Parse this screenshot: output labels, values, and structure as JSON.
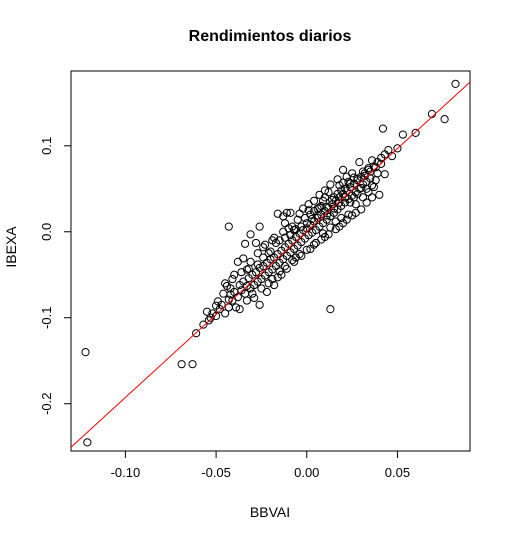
{
  "chart_data": {
    "type": "scatter",
    "title": "Rendimientos diarios",
    "xlabel": "BBVAI",
    "ylabel": "IBEXA",
    "xlim": [
      -0.13,
      0.09
    ],
    "ylim": [
      -0.255,
      0.187
    ],
    "xticks": [
      -0.1,
      -0.05,
      0.0,
      0.05
    ],
    "xtick_labels": [
      "-0.10",
      "-0.05",
      "0.00",
      "0.05"
    ],
    "yticks": [
      -0.2,
      -0.1,
      0.0,
      0.1
    ],
    "ytick_labels": [
      "-0.2",
      "-0.1",
      "0.0",
      "0.1"
    ],
    "grid": false,
    "legend": "none",
    "point_color": "#000000",
    "line_color": "#ff0000",
    "regression_line": {
      "intercept": 0.0003,
      "slope": 1.93
    },
    "series": [
      {
        "points": [
          [
            -0.122,
            -0.14
          ],
          [
            -0.121,
            -0.245
          ],
          [
            -0.069,
            -0.154
          ],
          [
            -0.063,
            -0.154
          ],
          [
            -0.061,
            -0.118
          ],
          [
            -0.057,
            -0.108
          ],
          [
            -0.054,
            -0.103
          ],
          [
            -0.052,
            -0.095
          ],
          [
            -0.05,
            -0.098
          ],
          [
            -0.049,
            -0.081
          ],
          [
            -0.047,
            -0.085
          ],
          [
            -0.045,
            -0.095
          ],
          [
            -0.043,
            -0.088
          ],
          [
            -0.042,
            -0.073
          ],
          [
            -0.041,
            -0.08
          ],
          [
            -0.04,
            -0.07
          ],
          [
            -0.038,
            -0.076
          ],
          [
            -0.037,
            -0.062
          ],
          [
            -0.036,
            -0.068
          ],
          [
            -0.035,
            -0.058
          ],
          [
            -0.034,
            -0.072
          ],
          [
            -0.033,
            -0.063
          ],
          [
            -0.032,
            -0.054
          ],
          [
            -0.031,
            -0.066
          ],
          [
            -0.03,
            -0.05
          ],
          [
            -0.029,
            -0.062
          ],
          [
            -0.028,
            -0.047
          ],
          [
            -0.027,
            -0.058
          ],
          [
            -0.026,
            -0.042
          ],
          [
            -0.025,
            -0.055
          ],
          [
            -0.024,
            -0.04
          ],
          [
            -0.023,
            -0.051
          ],
          [
            -0.022,
            -0.036
          ],
          [
            -0.021,
            -0.047
          ],
          [
            -0.02,
            -0.032
          ],
          [
            -0.019,
            -0.044
          ],
          [
            -0.018,
            -0.03
          ],
          [
            -0.017,
            -0.04
          ],
          [
            -0.016,
            -0.026
          ],
          [
            -0.015,
            -0.036
          ],
          [
            -0.014,
            -0.022
          ],
          [
            -0.013,
            -0.032
          ],
          [
            -0.012,
            -0.018
          ],
          [
            -0.011,
            -0.028
          ],
          [
            -0.01,
            -0.014
          ],
          [
            -0.009,
            -0.024
          ],
          [
            -0.008,
            -0.01
          ],
          [
            -0.007,
            -0.02
          ],
          [
            -0.006,
            -0.006
          ],
          [
            -0.005,
            -0.016
          ],
          [
            -0.004,
            -0.002
          ],
          [
            -0.003,
            -0.012
          ],
          [
            -0.002,
            0.002
          ],
          [
            -0.001,
            -0.008
          ],
          [
            0.0,
            0.004
          ],
          [
            0.001,
            -0.004
          ],
          [
            0.002,
            0.008
          ],
          [
            0.003,
            -0.001
          ],
          [
            0.004,
            0.012
          ],
          [
            0.005,
            0.002
          ],
          [
            0.006,
            0.016
          ],
          [
            0.007,
            0.006
          ],
          [
            0.008,
            0.02
          ],
          [
            0.009,
            0.01
          ],
          [
            0.01,
            0.024
          ],
          [
            0.011,
            0.014
          ],
          [
            0.012,
            0.028
          ],
          [
            0.013,
            0.018
          ],
          [
            0.014,
            0.032
          ],
          [
            0.015,
            0.022
          ],
          [
            0.016,
            0.036
          ],
          [
            0.017,
            0.026
          ],
          [
            0.018,
            0.04
          ],
          [
            0.019,
            0.03
          ],
          [
            0.02,
            0.044
          ],
          [
            0.021,
            0.034
          ],
          [
            0.022,
            0.048
          ],
          [
            0.023,
            0.038
          ],
          [
            0.024,
            0.052
          ],
          [
            0.025,
            0.042
          ],
          [
            0.026,
            0.056
          ],
          [
            0.027,
            0.046
          ],
          [
            0.028,
            0.06
          ],
          [
            0.029,
            0.05
          ],
          [
            0.03,
            0.064
          ],
          [
            0.031,
            0.055
          ],
          [
            0.032,
            0.068
          ],
          [
            0.033,
            0.058
          ],
          [
            0.034,
            0.072
          ],
          [
            0.035,
            0.062
          ],
          [
            0.037,
            0.076
          ],
          [
            0.039,
            0.081
          ],
          [
            0.041,
            0.086
          ],
          [
            0.043,
            0.09
          ],
          [
            0.045,
            0.095
          ],
          [
            0.047,
            0.088
          ],
          [
            0.05,
            0.097
          ],
          [
            0.053,
            0.113
          ],
          [
            0.06,
            0.115
          ],
          [
            0.069,
            0.137
          ],
          [
            0.076,
            0.131
          ],
          [
            0.082,
            0.172
          ],
          [
            0.042,
            0.12
          ],
          [
            0.013,
            -0.09
          ],
          [
            -0.043,
            0.006
          ],
          [
            -0.035,
            -0.031
          ],
          [
            -0.034,
            -0.014
          ],
          [
            -0.031,
            -0.003
          ],
          [
            -0.028,
            -0.013
          ],
          [
            -0.026,
            0.006
          ],
          [
            -0.024,
            -0.018
          ],
          [
            -0.021,
            -0.025
          ],
          [
            -0.019,
            -0.01
          ],
          [
            -0.017,
            -0.013
          ],
          [
            -0.016,
            0.021
          ],
          [
            -0.013,
            0.018
          ],
          [
            -0.011,
            0.022
          ],
          [
            -0.009,
            0.022
          ],
          [
            -0.007,
            0.002
          ],
          [
            -0.005,
            0.014
          ],
          [
            -0.038,
            -0.035
          ],
          [
            -0.04,
            -0.05
          ],
          [
            -0.033,
            -0.08
          ],
          [
            -0.029,
            -0.077
          ],
          [
            -0.022,
            -0.07
          ],
          [
            -0.018,
            -0.062
          ],
          [
            -0.016,
            -0.053
          ],
          [
            -0.014,
            -0.05
          ],
          [
            -0.011,
            -0.043
          ],
          [
            -0.008,
            -0.033
          ],
          [
            -0.006,
            -0.03
          ],
          [
            -0.003,
            -0.028
          ],
          [
            0.002,
            -0.02
          ],
          [
            0.004,
            -0.015
          ],
          [
            0.008,
            -0.009
          ],
          [
            0.01,
            -0.006
          ],
          [
            0.012,
            -0.003
          ],
          [
            0.016,
            0.003
          ],
          [
            0.018,
            0.006
          ],
          [
            0.02,
            0.01
          ],
          [
            0.022,
            0.014
          ],
          [
            0.025,
            0.019
          ],
          [
            0.027,
            0.022
          ],
          [
            0.03,
            0.026
          ],
          [
            0.033,
            0.034
          ],
          [
            0.036,
            0.04
          ],
          [
            0.04,
            0.043
          ],
          [
            0.029,
            0.081
          ],
          [
            0.025,
            0.068
          ],
          [
            0.02,
            0.072
          ],
          [
            0.017,
            0.061
          ],
          [
            0.013,
            0.055
          ],
          [
            0.01,
            0.048
          ],
          [
            0.007,
            0.043
          ],
          [
            0.004,
            0.036
          ],
          [
            0.001,
            0.032
          ],
          [
            -0.002,
            0.027
          ],
          [
            -0.004,
            0.021
          ],
          [
            0.006,
            0.027
          ],
          [
            0.009,
            0.036
          ],
          [
            0.015,
            0.04
          ],
          [
            0.019,
            0.048
          ],
          [
            0.023,
            0.058
          ],
          [
            0.026,
            0.063
          ],
          [
            0.031,
            0.07
          ],
          [
            0.034,
            0.074
          ],
          [
            0.036,
            0.083
          ],
          [
            0.038,
            0.06
          ],
          [
            -0.045,
            -0.06
          ],
          [
            -0.043,
            -0.079
          ],
          [
            -0.041,
            -0.055
          ],
          [
            -0.039,
            -0.088
          ],
          [
            -0.036,
            -0.047
          ],
          [
            -0.032,
            -0.043
          ],
          [
            -0.027,
            -0.038
          ],
          [
            -0.024,
            -0.03
          ],
          [
            -0.02,
            -0.023
          ],
          [
            -0.015,
            -0.01
          ],
          [
            -0.012,
            -0.007
          ],
          [
            -0.009,
            -0.004
          ],
          [
            -0.006,
            0.003
          ],
          [
            -0.003,
            0.006
          ],
          [
            0.0,
            0.01
          ],
          [
            0.003,
            0.015
          ],
          [
            0.006,
            0.019
          ],
          [
            0.011,
            0.029
          ],
          [
            0.014,
            0.037
          ],
          [
            0.017,
            0.044
          ],
          [
            0.021,
            0.05
          ],
          [
            0.024,
            0.056
          ],
          [
            0.028,
            0.062
          ],
          [
            0.032,
            0.065
          ],
          [
            0.035,
            0.07
          ],
          [
            0.038,
            0.075
          ],
          [
            -0.025,
            -0.066
          ],
          [
            -0.03,
            -0.072
          ],
          [
            -0.021,
            -0.06
          ],
          [
            -0.019,
            -0.055
          ],
          [
            -0.015,
            -0.046
          ],
          [
            -0.012,
            -0.04
          ],
          [
            -0.007,
            -0.035
          ],
          [
            -0.004,
            -0.026
          ],
          [
            0.0,
            -0.021
          ],
          [
            0.005,
            -0.013
          ],
          [
            0.009,
            -0.002
          ],
          [
            0.013,
            0.005
          ],
          [
            0.016,
            0.012
          ],
          [
            0.019,
            0.016
          ],
          [
            0.023,
            0.02
          ],
          [
            0.027,
            0.032
          ],
          [
            0.031,
            0.04
          ],
          [
            0.034,
            0.046
          ],
          [
            0.037,
            0.052
          ],
          [
            -0.037,
            -0.09
          ],
          [
            -0.026,
            -0.085
          ],
          [
            -0.044,
            -0.063
          ],
          [
            -0.046,
            -0.072
          ],
          [
            -0.031,
            -0.035
          ],
          [
            -0.033,
            -0.044
          ],
          [
            -0.012,
            0.01
          ],
          [
            -0.01,
            0.004
          ],
          [
            0.001,
            0.025
          ],
          [
            0.008,
            0.03
          ],
          [
            0.01,
            0.04
          ],
          [
            0.012,
            0.046
          ],
          [
            0.018,
            0.054
          ],
          [
            0.02,
            0.057
          ],
          [
            0.022,
            0.064
          ],
          [
            0.024,
            0.034
          ],
          [
            0.026,
            0.04
          ],
          [
            0.028,
            0.044
          ],
          [
            0.03,
            0.051
          ],
          [
            0.033,
            0.05
          ],
          [
            0.036,
            0.054
          ],
          [
            0.039,
            0.068
          ],
          [
            0.041,
            0.079
          ],
          [
            0.043,
            0.067
          ],
          [
            -0.048,
            -0.09
          ],
          [
            -0.05,
            -0.086
          ],
          [
            -0.053,
            -0.1
          ],
          [
            -0.055,
            -0.093
          ],
          [
            -0.042,
            -0.066
          ],
          [
            -0.027,
            -0.025
          ],
          [
            -0.023,
            -0.015
          ],
          [
            -0.018,
            -0.007
          ],
          [
            -0.013,
            0.0
          ],
          [
            -0.008,
            0.006
          ],
          [
            -0.001,
            0.016
          ],
          [
            0.002,
            0.02
          ],
          [
            0.007,
            0.028
          ],
          [
            0.004,
            0.024
          ],
          [
            0.011,
            0.019
          ],
          [
            0.015,
            0.027
          ],
          [
            0.018,
            0.034
          ],
          [
            0.021,
            0.04
          ]
        ]
      }
    ]
  }
}
